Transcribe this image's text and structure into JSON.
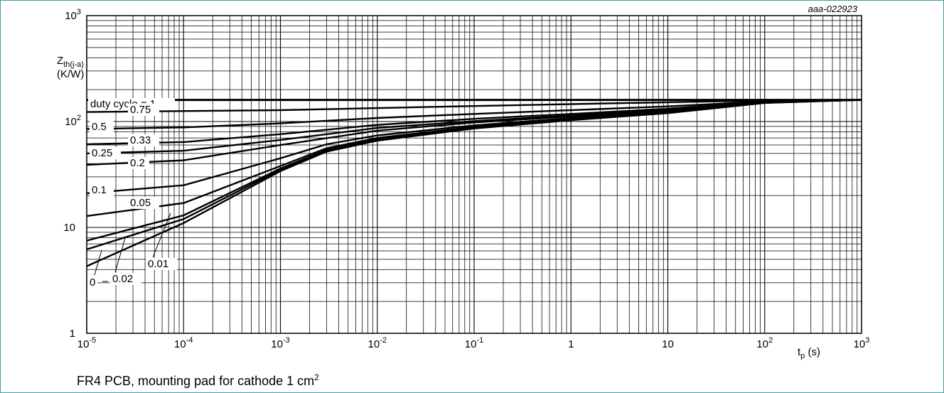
{
  "chart_data": {
    "type": "line",
    "figure_id": "aaa-022923",
    "x_scale": "log",
    "y_scale": "log",
    "xlim": [
      1e-05,
      1000
    ],
    "ylim": [
      1,
      1000
    ],
    "grid": true,
    "xlabel": {
      "main": "t",
      "sub": "p",
      "unit": "(s)"
    },
    "ylabel": {
      "main": "Z",
      "sub": "th(j-a)",
      "unit": "(K/W)"
    },
    "x_ticks": [
      {
        "value": 1e-05,
        "base": "10",
        "exp": "-5"
      },
      {
        "value": 0.0001,
        "base": "10",
        "exp": "-4"
      },
      {
        "value": 0.001,
        "base": "10",
        "exp": "-3"
      },
      {
        "value": 0.01,
        "base": "10",
        "exp": "-2"
      },
      {
        "value": 0.1,
        "base": "10",
        "exp": "-1"
      },
      {
        "value": 1,
        "base": "1",
        "exp": ""
      },
      {
        "value": 10,
        "base": "10",
        "exp": ""
      },
      {
        "value": 100,
        "base": "10",
        "exp": "2"
      },
      {
        "value": 1000,
        "base": "10",
        "exp": "3"
      }
    ],
    "y_ticks": [
      {
        "value": 1,
        "base": "1",
        "exp": ""
      },
      {
        "value": 10,
        "base": "10",
        "exp": ""
      },
      {
        "value": 100,
        "base": "10",
        "exp": "2"
      },
      {
        "value": 1000,
        "base": "10",
        "exp": "3"
      }
    ],
    "series": [
      {
        "name": "duty cycle = 1",
        "x": [
          1e-05,
          1000
        ],
        "y": [
          160,
          160
        ]
      },
      {
        "name": "0.75",
        "x": [
          1e-05,
          0.001,
          0.01,
          0.1,
          1,
          10,
          100,
          1000
        ],
        "y": [
          123,
          128,
          134,
          140,
          146,
          152,
          158,
          160
        ]
      },
      {
        "name": "0.5",
        "x": [
          1e-05,
          0.0001,
          0.001,
          0.01,
          0.1,
          1,
          10,
          100,
          1000
        ],
        "y": [
          85,
          88,
          96,
          108,
          118,
          128,
          139,
          155,
          160
        ]
      },
      {
        "name": "0.33",
        "x": [
          1e-05,
          0.0001,
          0.001,
          0.01,
          0.1,
          1,
          10,
          100,
          1000
        ],
        "y": [
          61,
          64,
          76,
          93,
          106,
          118,
          132,
          154,
          160
        ]
      },
      {
        "name": "0.25",
        "x": [
          1e-05,
          0.0001,
          0.001,
          0.01,
          0.1,
          1,
          10,
          100,
          1000
        ],
        "y": [
          50,
          53,
          67,
          87,
          101,
          114,
          130,
          153,
          160
        ]
      },
      {
        "name": "0.2",
        "x": [
          1e-05,
          0.0001,
          0.001,
          0.01,
          0.1,
          1,
          10,
          100,
          1000
        ],
        "y": [
          39,
          43,
          60,
          82,
          98,
          112,
          128,
          153,
          160
        ]
      },
      {
        "name": "0.1",
        "x": [
          1e-05,
          0.0001,
          0.001,
          0.003,
          0.01,
          0.1,
          1,
          10,
          100,
          1000
        ],
        "y": [
          21,
          25,
          45,
          61,
          74,
          92,
          108,
          125,
          152,
          160
        ]
      },
      {
        "name": "0.05",
        "x": [
          1e-05,
          0.0001,
          0.001,
          0.003,
          0.01,
          0.1,
          1,
          10,
          100,
          1000
        ],
        "y": [
          12.8,
          17,
          38,
          56,
          70,
          89,
          106,
          123,
          151,
          160
        ]
      },
      {
        "name": "0.02",
        "x": [
          1e-05,
          0.0001,
          0.001,
          0.003,
          0.01,
          0.1,
          1,
          10,
          100,
          1000
        ],
        "y": [
          7.5,
          13,
          36,
          54,
          68,
          88,
          105,
          122,
          151,
          160
        ]
      },
      {
        "name": "0.01",
        "x": [
          1e-05,
          0.0001,
          0.001,
          0.003,
          0.01,
          0.1,
          1,
          10,
          100,
          1000
        ],
        "y": [
          6.2,
          12,
          35,
          53,
          67,
          87,
          104,
          121,
          150,
          160
        ]
      },
      {
        "name": "0",
        "x": [
          1e-05,
          0.0001,
          0.001,
          0.003,
          0.01,
          0.1,
          1,
          10,
          100,
          1000
        ],
        "y": [
          4.3,
          11,
          34,
          52,
          66,
          86,
          103,
          120,
          150,
          160
        ]
      }
    ]
  },
  "caption": {
    "text": "FR4 PCB, mounting pad for cathode 1 cm",
    "sup": "2"
  }
}
